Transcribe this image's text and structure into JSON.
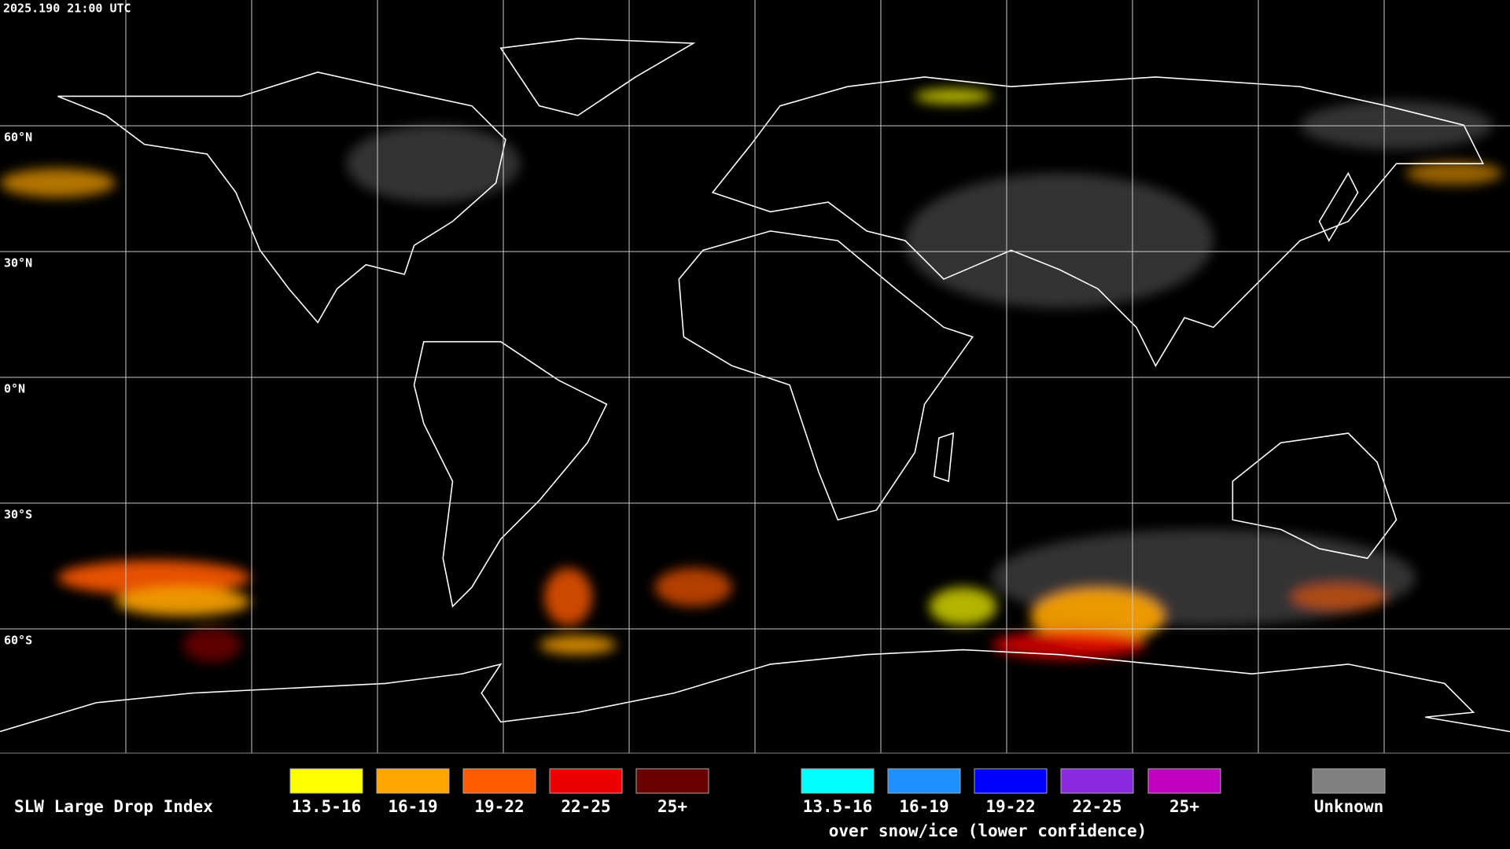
{
  "header": {
    "timestamp": "2025.190 21:00 UTC"
  },
  "map": {
    "lat_labels": [
      "60°N",
      "30°N",
      "0°N",
      "30°S",
      "60°S"
    ]
  },
  "legend": {
    "title": "SLW Large Drop Index",
    "liquid": {
      "items": [
        {
          "label": "13.5-16",
          "color": "#ffff00"
        },
        {
          "label": "16-19",
          "color": "#ffa500"
        },
        {
          "label": "19-22",
          "color": "#ff5a00"
        },
        {
          "label": "22-25",
          "color": "#ee0000"
        },
        {
          "label": "25+",
          "color": "#6a0000"
        }
      ]
    },
    "ice": {
      "items": [
        {
          "label": "13.5-16",
          "color": "#00ffff"
        },
        {
          "label": "16-19",
          "color": "#1e90ff"
        },
        {
          "label": "19-22",
          "color": "#0000ff"
        },
        {
          "label": "22-25",
          "color": "#8a2be2"
        },
        {
          "label": "25+",
          "color": "#c000c0"
        }
      ],
      "caption": "over snow/ice (lower confidence)"
    },
    "unknown": {
      "label": "Unknown",
      "color": "#808080"
    }
  }
}
